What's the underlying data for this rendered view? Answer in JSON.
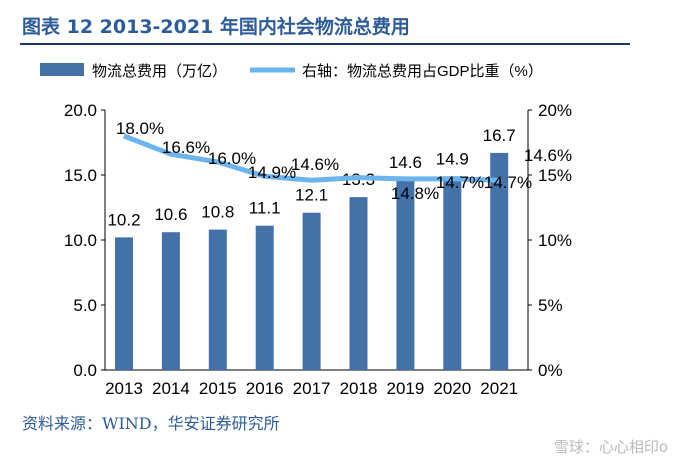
{
  "header": {
    "title": "图表 12 2013-2021 年国内社会物流总费用"
  },
  "source": "资料来源：WIND，华安证券研究所",
  "watermark": "雪球：心心相印o",
  "chart_data": {
    "type": "bar+line",
    "categories": [
      "2013",
      "2014",
      "2015",
      "2016",
      "2017",
      "2018",
      "2019",
      "2020",
      "2021"
    ],
    "series": [
      {
        "name": "物流总费用（万亿）",
        "type": "bar",
        "axis": "left",
        "color": "#4472A8",
        "values": [
          10.2,
          10.6,
          10.8,
          11.1,
          12.1,
          13.3,
          14.6,
          14.9,
          16.7
        ],
        "labels": [
          "10.2",
          "10.6",
          "10.8",
          "11.1",
          "12.1",
          "13.3",
          "14.6",
          "14.9",
          "16.7"
        ]
      },
      {
        "name": "右轴：物流总费用占GDP比重（%）",
        "type": "line",
        "axis": "right",
        "color": "#6CB4EE",
        "values": [
          18.0,
          16.6,
          16.0,
          14.9,
          14.6,
          14.8,
          14.7,
          14.7,
          14.6
        ],
        "labels": [
          "18.0%",
          "16.6%",
          "16.0%",
          "14.9%",
          "14.6%",
          "14.8%",
          "14.7%",
          "14.7%",
          "14.6%"
        ]
      }
    ],
    "ylim": [
      0,
      20
    ],
    "yticks": [
      "0.0",
      "5.0",
      "10.0",
      "15.0",
      "20.0"
    ],
    "y2lim": [
      0,
      20
    ],
    "y2ticks": [
      "0%",
      "5%",
      "10%",
      "15%",
      "20%"
    ],
    "legend": "top",
    "grid": false
  }
}
